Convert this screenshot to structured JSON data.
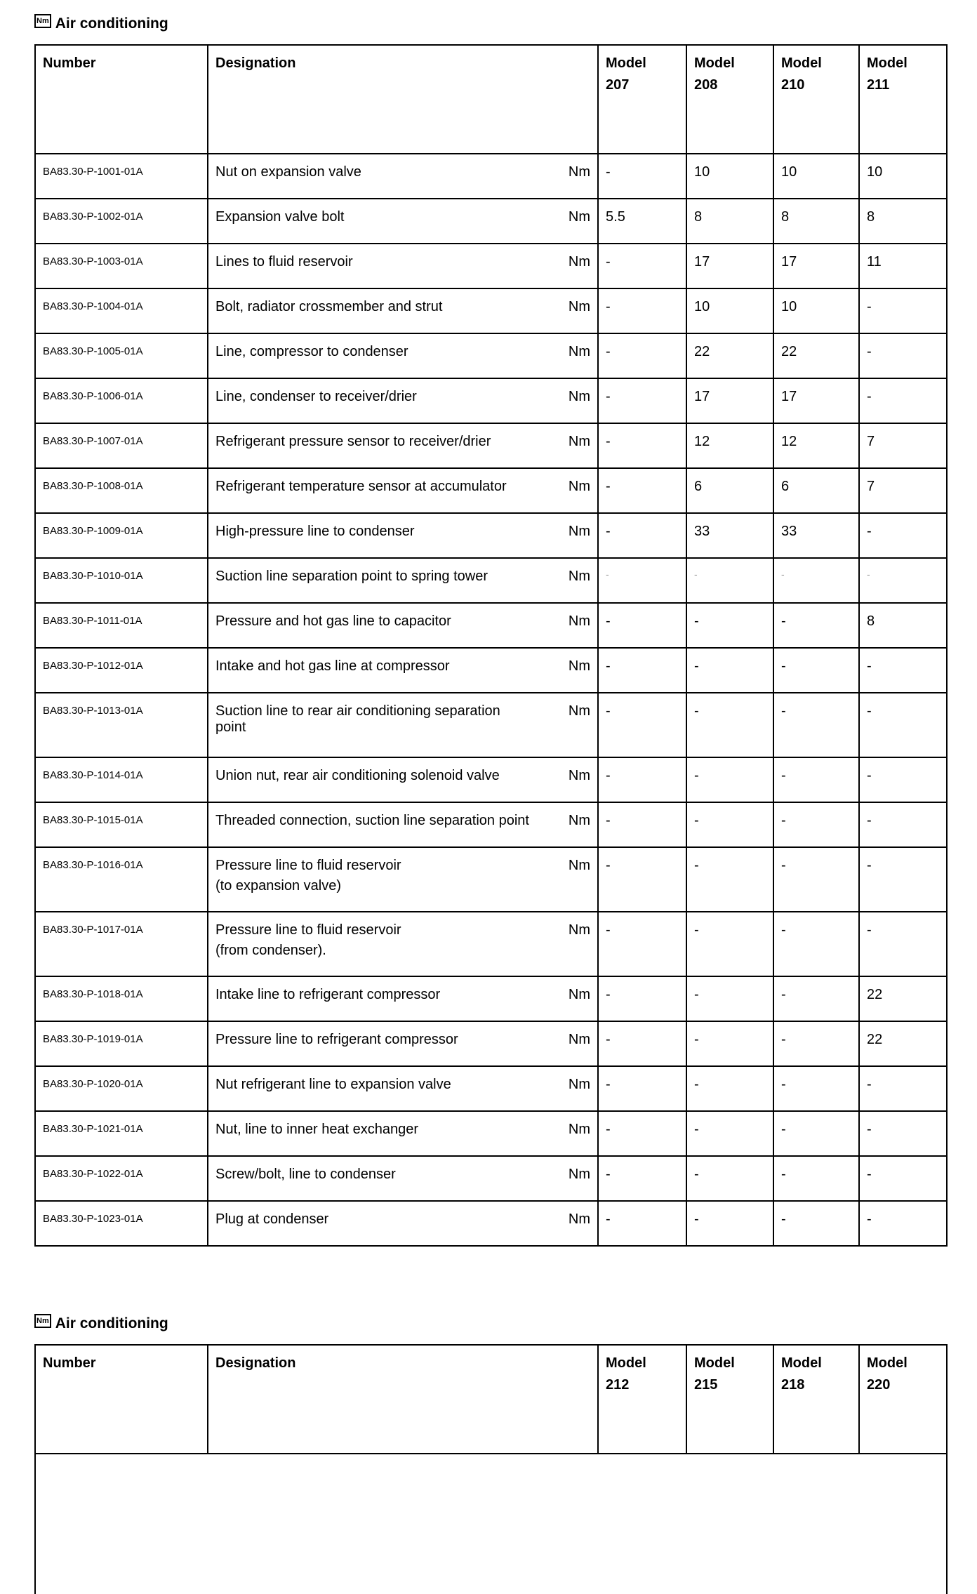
{
  "sections": [
    {
      "title": "Air conditioning",
      "icon": "Nm",
      "headers": {
        "number": "Number",
        "designation": "Designation",
        "models": [
          [
            "Model",
            "207"
          ],
          [
            "Model",
            "208"
          ],
          [
            "Model",
            "210"
          ],
          [
            "Model",
            "211"
          ]
        ]
      },
      "rows": [
        {
          "number": "BA83.30-P-1001-01A",
          "designation": "Nut on expansion valve",
          "unit": "Nm",
          "values": [
            "-",
            "10",
            "10",
            "10"
          ]
        },
        {
          "number": "BA83.30-P-1002-01A",
          "designation": "Expansion valve bolt",
          "unit": "Nm",
          "values": [
            "5.5",
            "8",
            "8",
            "8"
          ]
        },
        {
          "number": "BA83.30-P-1003-01A",
          "designation": "Lines to fluid reservoir",
          "unit": "Nm",
          "values": [
            "-",
            "17",
            "17",
            "11"
          ]
        },
        {
          "number": "BA83.30-P-1004-01A",
          "designation": "Bolt, radiator crossmember and strut",
          "unit": "Nm",
          "values": [
            "-",
            "10",
            "10",
            "-"
          ]
        },
        {
          "number": "BA83.30-P-1005-01A",
          "designation": "Line, compressor to condenser",
          "unit": "Nm",
          "values": [
            "-",
            "22",
            "22",
            "-"
          ]
        },
        {
          "number": "BA83.30-P-1006-01A",
          "designation": "Line, condenser to receiver/drier",
          "unit": "Nm",
          "values": [
            "-",
            "17",
            "17",
            "-"
          ]
        },
        {
          "number": "BA83.30-P-1007-01A",
          "designation": "Refrigerant pressure sensor to receiver/drier",
          "unit": "Nm",
          "values": [
            "-",
            "12",
            "12",
            "7"
          ]
        },
        {
          "number": "BA83.30-P-1008-01A",
          "designation": "Refrigerant temperature sensor at accumulator",
          "unit": "Nm",
          "values": [
            "-",
            "6",
            "6",
            "7"
          ]
        },
        {
          "number": "BA83.30-P-1009-01A",
          "designation": "High-pressure line to condenser",
          "unit": "Nm",
          "values": [
            "-",
            "33",
            "33",
            "-"
          ]
        },
        {
          "number": "BA83.30-P-1010-01A",
          "designation": "Suction line separation point to spring tower",
          "unit": "Nm",
          "values": [
            "-",
            "-",
            "-",
            "-"
          ]
        },
        {
          "number": "BA83.30-P-1011-01A",
          "designation": "Pressure and hot gas line to capacitor",
          "unit": "Nm",
          "values": [
            "-",
            "-",
            "-",
            "8"
          ]
        },
        {
          "number": "BA83.30-P-1012-01A",
          "designation": "Intake and hot gas line at compressor",
          "unit": "Nm",
          "values": [
            "-",
            "-",
            "-",
            "-"
          ]
        },
        {
          "number": "BA83.30-P-1013-01A",
          "designation": "Suction line to rear air conditioning separation point",
          "unit": "Nm",
          "values": [
            "-",
            "-",
            "-",
            "-"
          ]
        },
        {
          "number": "BA83.30-P-1014-01A",
          "designation": "Union nut, rear air conditioning solenoid valve",
          "unit": "Nm",
          "values": [
            "-",
            "-",
            "-",
            "-"
          ]
        },
        {
          "number": "BA83.30-P-1015-01A",
          "designation": "Threaded connection, suction line separation point",
          "unit": "Nm",
          "values": [
            "-",
            "-",
            "-",
            "-"
          ]
        },
        {
          "number": "BA83.30-P-1016-01A",
          "designation": "Pressure line to fluid reservoir",
          "designation_note": "(to expansion valve)",
          "unit": "Nm",
          "values": [
            "-",
            "-",
            "-",
            "-"
          ]
        },
        {
          "number": "BA83.30-P-1017-01A",
          "designation": "Pressure line to fluid reservoir",
          "designation_note": "(from condenser).",
          "unit": "Nm",
          "values": [
            "-",
            "-",
            "-",
            "-"
          ]
        },
        {
          "number": "BA83.30-P-1018-01A",
          "designation": "Intake line to refrigerant compressor",
          "unit": "Nm",
          "values": [
            "-",
            "-",
            "-",
            "22"
          ]
        },
        {
          "number": "BA83.30-P-1019-01A",
          "designation": "Pressure line to refrigerant compressor",
          "unit": "Nm",
          "values": [
            "-",
            "-",
            "-",
            "22"
          ]
        },
        {
          "number": "BA83.30-P-1020-01A",
          "designation": "Nut refrigerant line to expansion valve",
          "unit": "Nm",
          "values": [
            "-",
            "-",
            "-",
            "-"
          ]
        },
        {
          "number": "BA83.30-P-1021-01A",
          "designation": "Nut, line to inner heat exchanger",
          "unit": "Nm",
          "values": [
            "-",
            "-",
            "-",
            "-"
          ]
        },
        {
          "number": "BA83.30-P-1022-01A",
          "designation": "Screw/bolt, line to condenser",
          "unit": "Nm",
          "values": [
            "-",
            "-",
            "-",
            "-"
          ]
        },
        {
          "number": "BA83.30-P-1023-01A",
          "designation": "Plug at condenser",
          "unit": "Nm",
          "values": [
            "-",
            "-",
            "-",
            "-"
          ]
        }
      ]
    },
    {
      "title": "Air conditioning",
      "icon": "Nm",
      "headers": {
        "number": "Number",
        "designation": "Designation",
        "models": [
          [
            "Model",
            "212"
          ],
          [
            "Model",
            "215"
          ],
          [
            "Model",
            "218"
          ],
          [
            "Model",
            "220"
          ]
        ]
      },
      "rows": []
    }
  ]
}
